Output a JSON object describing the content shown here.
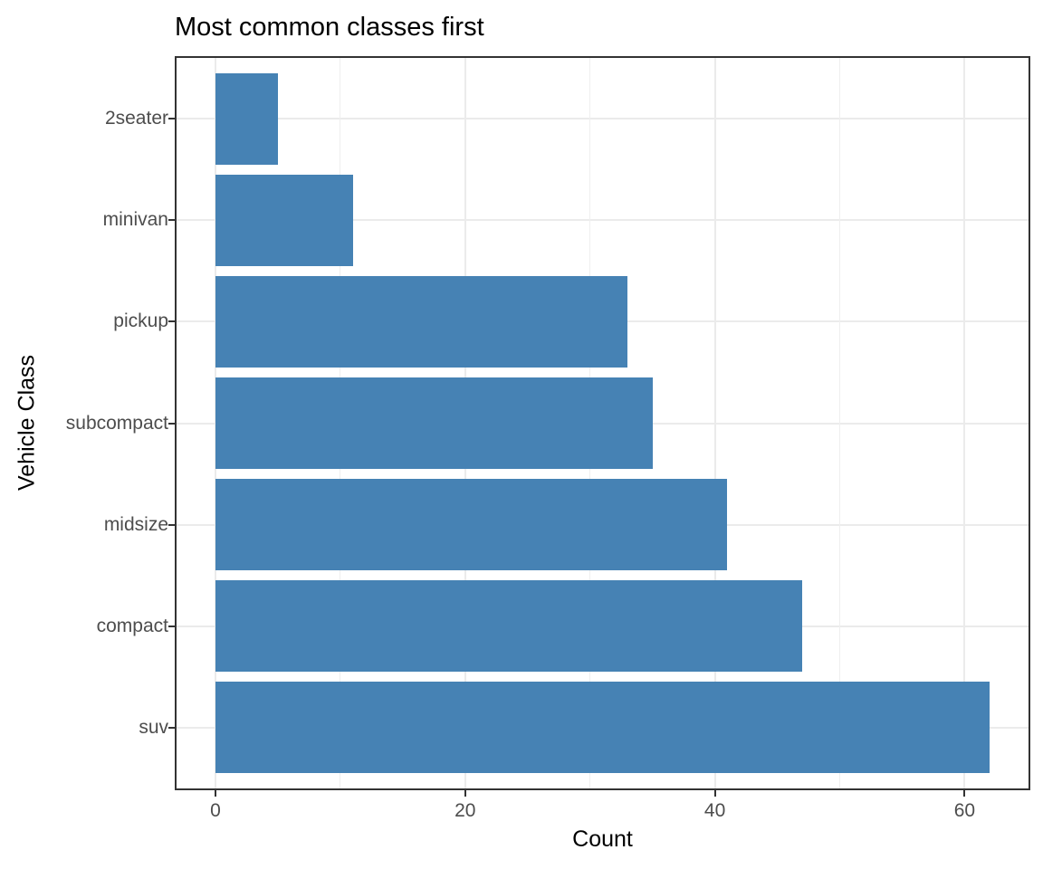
{
  "chart_data": {
    "type": "bar",
    "orientation": "horizontal",
    "title": "Most common classes first",
    "xlabel": "Count",
    "ylabel": "Vehicle Class",
    "categories": [
      "2seater",
      "minivan",
      "pickup",
      "subcompact",
      "midsize",
      "compact",
      "suv"
    ],
    "values": [
      5,
      11,
      33,
      35,
      41,
      47,
      62
    ],
    "xlim": [
      0,
      62
    ],
    "x_major_ticks": [
      0,
      20,
      40,
      60
    ],
    "x_minor_ticks": [
      10,
      30,
      50
    ],
    "grid": "on",
    "legend": "none",
    "colors": {
      "bar_fill": "#4682B4",
      "grid_major": "#EBEBEB",
      "grid_minor": "#EFEFEF",
      "panel_border": "#333333",
      "tick_mark": "#333333",
      "tick_label": "#4D4D4D",
      "title_text": "#000000",
      "background": "#FFFFFF"
    }
  }
}
